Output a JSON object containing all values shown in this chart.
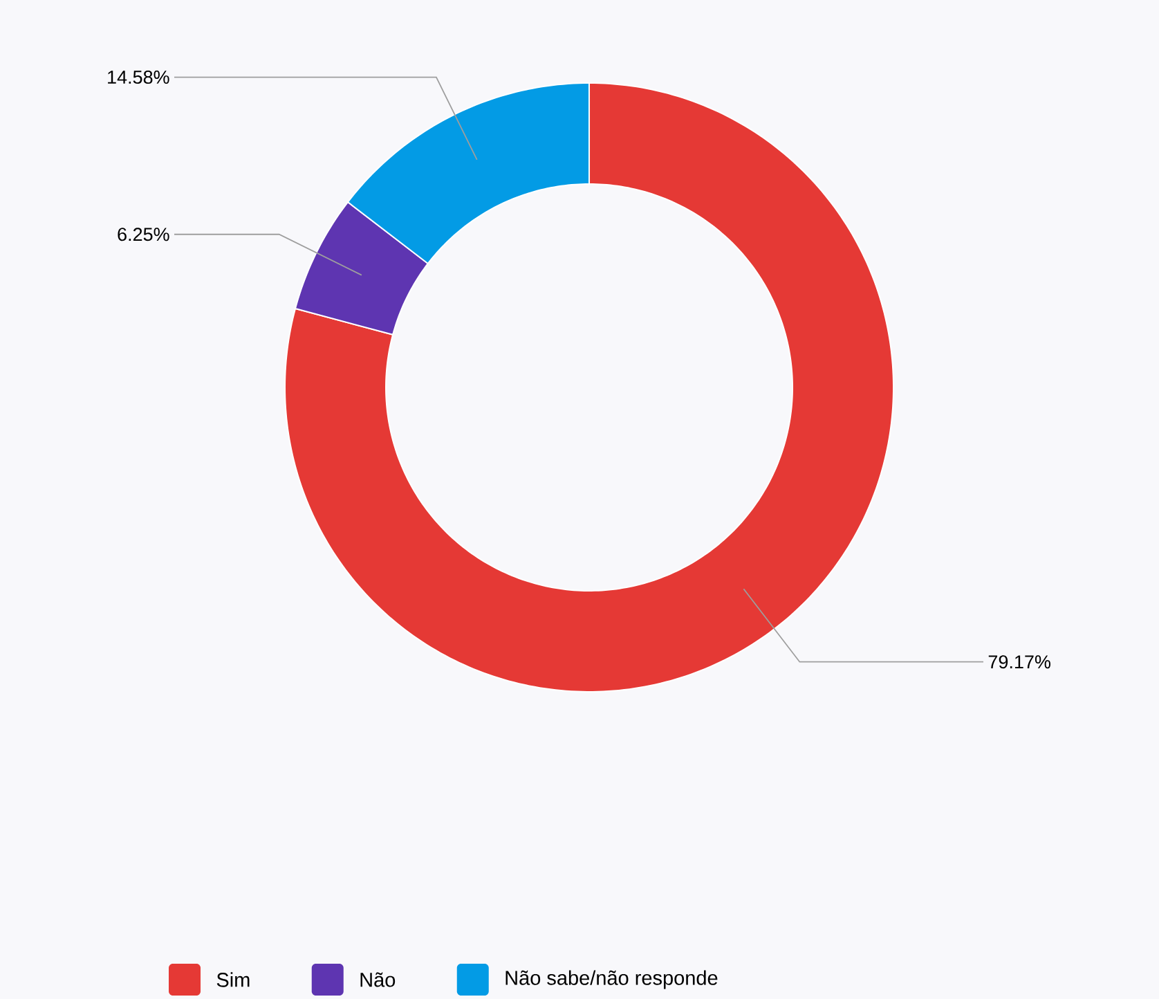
{
  "chart_data": {
    "type": "donut",
    "categories": [
      "Sim",
      "Não",
      "Não sabe/não responde"
    ],
    "values": [
      79.17,
      6.25,
      14.58
    ],
    "colors": [
      "#e53935",
      "#5e35b1",
      "#039be5"
    ],
    "value_labels": [
      "79.17%",
      "6.25%",
      "14.58%"
    ],
    "legend": "bottom"
  }
}
